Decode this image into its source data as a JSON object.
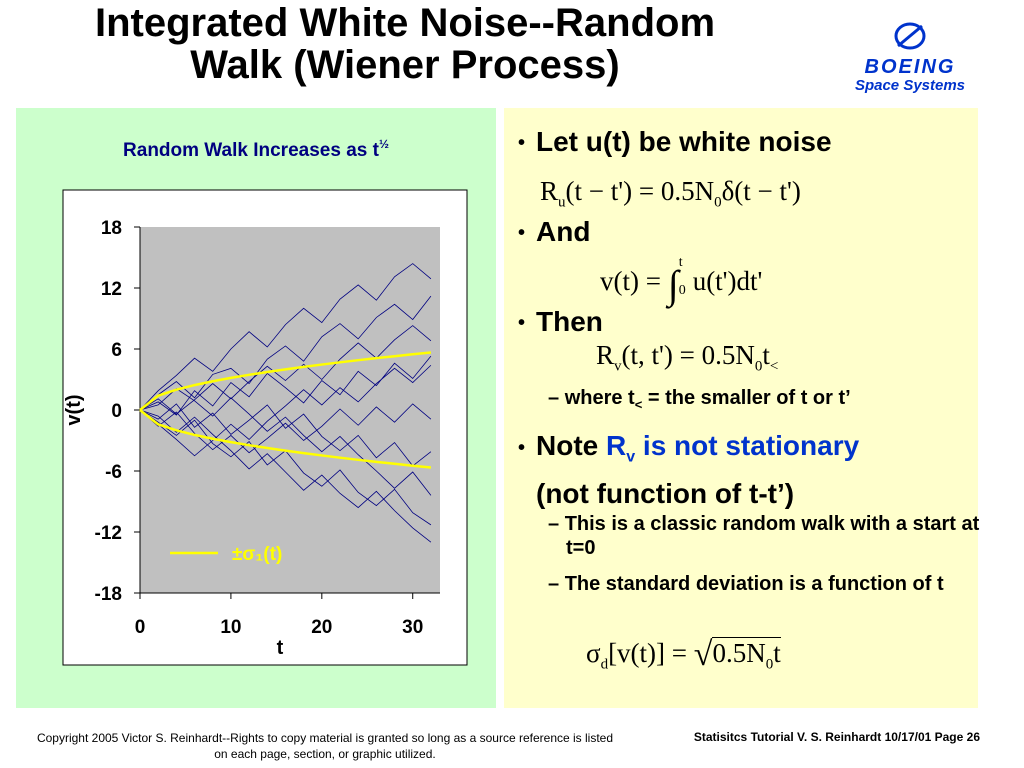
{
  "header": {
    "title_line1": "Integrated White Noise--Random",
    "title_line2": "Walk (Wiener Process)",
    "logo": "BOEING",
    "logo_sub": "Space Systems"
  },
  "chart_data": {
    "type": "line",
    "title": "Random Walk Increases as t",
    "title_superscript": "½",
    "x_label": "t",
    "y_label": "v(t)",
    "x": [
      0,
      2,
      4,
      6,
      8,
      10,
      12,
      14,
      16,
      18,
      20,
      22,
      24,
      26,
      28,
      30,
      32
    ],
    "xlim": [
      0,
      33
    ],
    "xticks": [
      0,
      10,
      20,
      30
    ],
    "ylim": [
      -18,
      18
    ],
    "yticks": [
      -18,
      -12,
      -6,
      0,
      6,
      12,
      18
    ],
    "series": [
      {
        "color": "#000080",
        "values": [
          0,
          1.5,
          2.8,
          1.2,
          3.5,
          4.1,
          2.6,
          5.0,
          6.3,
          4.8,
          7.2,
          8.5,
          7.0,
          9.1,
          10.4,
          8.9,
          11.2
        ]
      },
      {
        "color": "#000080",
        "values": [
          0,
          -1.2,
          -2.5,
          -1.0,
          -3.3,
          -4.6,
          -3.1,
          -5.4,
          -4.0,
          -6.2,
          -7.5,
          -5.9,
          -8.1,
          -9.4,
          -7.8,
          -10.1,
          -11.3
        ]
      },
      {
        "color": "#000080",
        "values": [
          0,
          0.8,
          -0.5,
          1.9,
          0.4,
          2.7,
          1.3,
          3.6,
          2.2,
          0.7,
          2.9,
          1.5,
          3.8,
          2.4,
          4.6,
          3.1,
          5.3
        ]
      },
      {
        "color": "#000080",
        "values": [
          0,
          -0.9,
          0.6,
          -1.7,
          -0.3,
          -2.4,
          -1.0,
          0.5,
          -1.8,
          -0.4,
          -2.6,
          -4.0,
          -2.5,
          -4.7,
          -3.2,
          -5.5,
          -4.1
        ]
      },
      {
        "color": "#000080",
        "values": [
          0,
          1.9,
          3.4,
          5.1,
          3.8,
          6.0,
          7.7,
          6.2,
          8.4,
          10.0,
          8.6,
          10.9,
          12.3,
          10.8,
          13.1,
          14.4,
          12.9
        ]
      },
      {
        "color": "#000080",
        "values": [
          0,
          -1.6,
          -0.2,
          -2.3,
          -3.9,
          -2.5,
          -4.2,
          -2.8,
          -1.3,
          -3.0,
          -1.6,
          0.1,
          -1.5,
          0.3,
          -1.2,
          0.6,
          -0.9
        ]
      },
      {
        "color": "#000080",
        "values": [
          0,
          0.5,
          2.1,
          0.9,
          -0.6,
          1.2,
          -0.4,
          -2.1,
          -0.7,
          -2.5,
          -4.1,
          -2.6,
          -4.4,
          -6.0,
          -7.7,
          -6.1,
          -8.4
        ]
      },
      {
        "color": "#000080",
        "values": [
          0,
          -1.4,
          -2.9,
          -4.5,
          -3.0,
          -1.4,
          -2.9,
          -1.1,
          0.4,
          2.0,
          0.5,
          2.2,
          0.8,
          2.6,
          4.1,
          2.7,
          4.4
        ]
      },
      {
        "color": "#000080",
        "values": [
          0,
          1.1,
          -0.4,
          1.0,
          2.6,
          1.1,
          2.8,
          4.3,
          2.9,
          4.5,
          3.0,
          5.0,
          6.6,
          5.1,
          6.9,
          8.3,
          6.8
        ]
      },
      {
        "color": "#000080",
        "values": [
          0,
          -0.6,
          -2.2,
          -0.7,
          -2.4,
          -4.0,
          -5.8,
          -4.3,
          -6.1,
          -7.9,
          -6.4,
          -8.2,
          -9.6,
          -8.0,
          -9.9,
          -11.6,
          -13.0
        ]
      },
      {
        "name": "±σ₁(t)",
        "color": "#ffff00",
        "values": [
          0,
          1.41,
          2,
          2.45,
          2.83,
          3.16,
          3.46,
          3.74,
          4,
          4.24,
          4.47,
          4.69,
          4.9,
          5.1,
          5.29,
          5.48,
          5.66
        ]
      },
      {
        "color": "#ffff00",
        "values": [
          0,
          -1.41,
          -2,
          -2.45,
          -2.83,
          -3.16,
          -3.46,
          -3.74,
          -4,
          -4.24,
          -4.47,
          -4.69,
          -4.9,
          -5.1,
          -5.29,
          -5.48,
          -5.66
        ]
      }
    ]
  },
  "bullets": {
    "b1": "Let u(t) be white noise",
    "eq1": [
      "R",
      "u",
      "(t − t') = 0.5N",
      "0",
      "δ(t − t')"
    ],
    "b2": "And",
    "eq2": [
      "v(t) = ",
      "∫",
      "t",
      "0",
      "u(t')dt'"
    ],
    "b3": "Then",
    "eq3": [
      "R",
      "v",
      "(t, t') = 0.5N",
      "0",
      "t",
      "<"
    ],
    "s1": [
      "where t",
      "<",
      " = the smaller of t or t’"
    ],
    "b4": [
      "Note ",
      "R",
      "v",
      " is not stationary",
      "(not function of t-t’)"
    ],
    "s2": "This is a classic random walk with a start at t=0",
    "s3": "The standard deviation is a function of t",
    "eq4": [
      "σ",
      "d",
      "[v(t)] = ",
      "0.5N",
      "0",
      "t"
    ]
  },
  "footer": {
    "left": "Copyright 2005 Victor S. Reinhardt--Rights to copy material is granted so long as a source reference is listed on each page, section, or graphic utilized.",
    "right": "Statisitcs Tutorial V. S. Reinhardt 10/17/01 Page 26"
  }
}
